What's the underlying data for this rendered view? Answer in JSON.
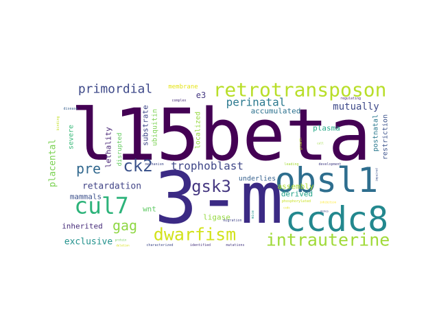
{
  "words": [
    {
      "text": "l15beta",
      "color": "#440154",
      "weight": 100
    },
    {
      "text": "3-m",
      "color": "#3b2a84",
      "weight": 88
    },
    {
      "text": "obsl1",
      "color": "#2e6e8e",
      "weight": 50
    },
    {
      "text": "ccdc8",
      "color": "#23888e",
      "weight": 50
    },
    {
      "text": "cul7",
      "color": "#2db37a",
      "weight": 36
    },
    {
      "text": "retrotransposon",
      "color": "#b8de29",
      "weight": 30
    },
    {
      "text": "intrauterine",
      "color": "#a0da39",
      "weight": 28
    },
    {
      "text": "dwarfism",
      "color": "#d2e21b",
      "weight": 28
    },
    {
      "text": "gsk3",
      "color": "#453781",
      "weight": 26
    },
    {
      "text": "ck2",
      "color": "#3b528b",
      "weight": 26
    },
    {
      "text": "gag",
      "color": "#8fd744",
      "weight": 22
    },
    {
      "text": "pre",
      "color": "#31688e",
      "weight": 22
    },
    {
      "text": "primordial",
      "color": "#3e4989",
      "weight": 20
    },
    {
      "text": "trophoblast",
      "color": "#3f4788",
      "weight": 18
    },
    {
      "text": "perinatal",
      "color": "#2a788e",
      "weight": 18
    },
    {
      "text": "mutually",
      "color": "#3e4a89",
      "weight": 16
    },
    {
      "text": "retardation",
      "color": "#414487",
      "weight": 14
    },
    {
      "text": "exclusive",
      "color": "#21918c",
      "weight": 14
    },
    {
      "text": "placental",
      "color": "#7ad151",
      "weight": 14
    },
    {
      "text": "inherited",
      "color": "#472c7a",
      "weight": 12
    },
    {
      "text": "mammals",
      "color": "#3c508b",
      "weight": 12
    },
    {
      "text": "wnt",
      "color": "#5ec962",
      "weight": 12
    },
    {
      "text": "ligase",
      "color": "#95d840",
      "weight": 12
    },
    {
      "text": "assembly",
      "color": "#addc30",
      "weight": 12
    },
    {
      "text": "derived",
      "color": "#1fa187",
      "weight": 12
    },
    {
      "text": "underlies",
      "color": "#35608d",
      "weight": 12
    },
    {
      "text": "plasma",
      "color": "#22a785",
      "weight": 12
    },
    {
      "text": "accumulated",
      "color": "#2c718e",
      "weight": 12
    },
    {
      "text": "e3",
      "color": "#453882",
      "weight": 12
    },
    {
      "text": "lethality",
      "color": "#482475",
      "weight": 12
    },
    {
      "text": "disrupted",
      "color": "#63cb5f",
      "weight": 11
    },
    {
      "text": "substrate",
      "color": "#3f4788",
      "weight": 12
    },
    {
      "text": "ubiquitin",
      "color": "#7ad151",
      "weight": 11
    },
    {
      "text": "localized",
      "color": "#95d840",
      "weight": 11
    },
    {
      "text": "severe",
      "color": "#37b878",
      "weight": 11
    },
    {
      "text": "membrane",
      "color": "#e5e419",
      "weight": 10
    },
    {
      "text": "postnatal",
      "color": "#2a788e",
      "weight": 10
    },
    {
      "text": "restriction",
      "color": "#3b528b",
      "weight": 10
    },
    {
      "text": "binding",
      "color": "#c2df23",
      "weight": 6
    },
    {
      "text": "disease",
      "color": "#355f8d",
      "weight": 6
    },
    {
      "text": "complex",
      "color": "#472d7b",
      "weight": 6
    },
    {
      "text": "regulating",
      "color": "#481f70",
      "weight": 6
    },
    {
      "text": "mechanism",
      "color": "#3e4989",
      "weight": 6
    },
    {
      "text": "migration",
      "color": "#404387",
      "weight": 6
    },
    {
      "text": "leading",
      "color": "#a5db36",
      "weight": 6
    },
    {
      "text": "development",
      "color": "#433e85",
      "weight": 6
    },
    {
      "text": "growth",
      "color": "#bddf26",
      "weight": 6
    },
    {
      "text": "phosphorylated",
      "color": "#c8e020",
      "weight": 6
    },
    {
      "text": "characterized",
      "color": "#3e4989",
      "weight": 6
    },
    {
      "text": "identified",
      "color": "#46327e",
      "weight": 6
    },
    {
      "text": "mutations",
      "color": "#453882",
      "weight": 6
    },
    {
      "text": "mice",
      "color": "#20928c",
      "weight": 6
    },
    {
      "text": "protein",
      "color": "#6ccd5a",
      "weight": 5
    },
    {
      "text": "deletion",
      "color": "#d8e219",
      "weight": 5
    },
    {
      "text": "impaired",
      "color": "#3b528b",
      "weight": 5
    },
    {
      "text": "cell",
      "color": "#9bd93c",
      "weight": 5
    },
    {
      "text": "genes",
      "color": "#3d4d8a",
      "weight": 5
    },
    {
      "text": "inhibition",
      "color": "#fde725",
      "weight": 5
    },
    {
      "text": "ccdc",
      "color": "#e2e418",
      "weight": 5
    }
  ]
}
